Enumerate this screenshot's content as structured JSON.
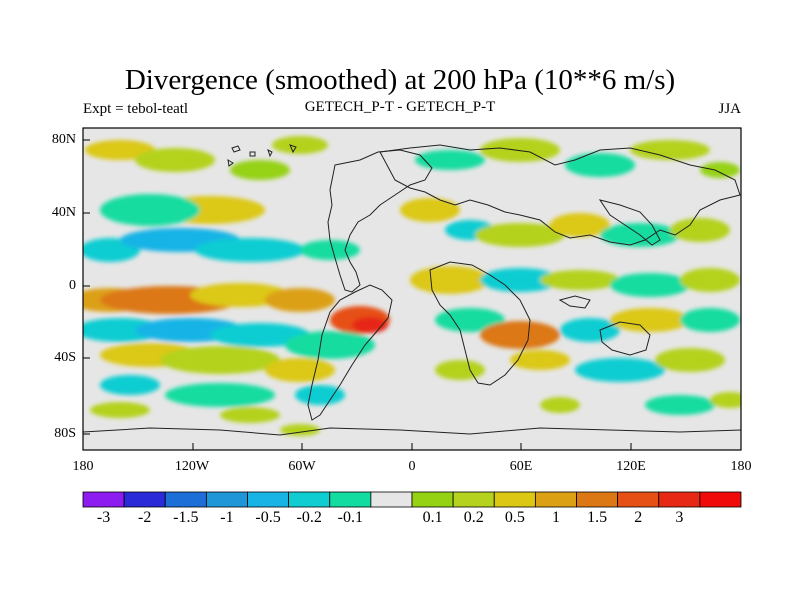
{
  "title": "Divergence (smoothed) at 200 hPa (10**6 m/s)",
  "subtitle_left": "Expt = tebol-teatl",
  "subtitle_center": "GETECH_P-T - GETECH_P-T",
  "subtitle_right": "JJA",
  "y_axis_labels": [
    "80N",
    "40N",
    "0",
    "40S",
    "80S"
  ],
  "x_axis_labels": [
    "180",
    "120W",
    "60W",
    "0",
    "60E",
    "120E",
    "180"
  ],
  "colorbar": {
    "colors": [
      "#8c1cf0",
      "#2a2ad8",
      "#1e6ed8",
      "#1e96d8",
      "#19b4e6",
      "#10cdd2",
      "#12dca0",
      "#e6e6e6",
      "#96d214",
      "#b4d21e",
      "#dcc814",
      "#dca014",
      "#dc7814",
      "#e65014",
      "#e62814",
      "#f00a0a"
    ],
    "labels": [
      "-3",
      "-2",
      "-1.5",
      "-1",
      "-0.5",
      "-0.2",
      "-0.1",
      "0.1",
      "0.2",
      "0.5",
      "1",
      "1.5",
      "2",
      "3"
    ]
  }
}
